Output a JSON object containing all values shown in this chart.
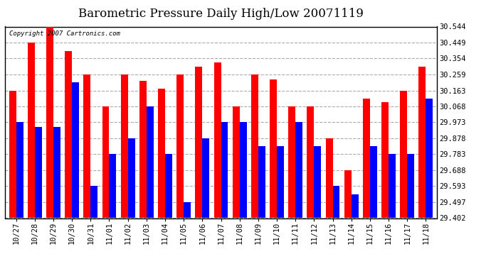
{
  "title": "Barometric Pressure Daily High/Low 20071119",
  "copyright": "Copyright 2007 Cartronics.com",
  "dates": [
    "10/27",
    "10/28",
    "10/29",
    "10/30",
    "10/31",
    "11/01",
    "11/02",
    "11/03",
    "11/04",
    "11/05",
    "11/06",
    "11/07",
    "11/08",
    "11/09",
    "11/10",
    "11/11",
    "11/12",
    "11/13",
    "11/14",
    "11/15",
    "11/16",
    "11/17",
    "11/18"
  ],
  "highs": [
    30.163,
    30.449,
    30.544,
    30.4,
    30.259,
    30.068,
    30.259,
    30.22,
    30.173,
    30.259,
    30.307,
    30.33,
    30.068,
    30.259,
    30.23,
    30.068,
    30.068,
    29.878,
    29.688,
    30.115,
    30.095,
    30.163,
    30.307
  ],
  "lows": [
    29.973,
    29.945,
    29.945,
    30.21,
    29.593,
    29.783,
    29.878,
    30.068,
    29.783,
    29.497,
    29.878,
    29.973,
    29.973,
    29.83,
    29.83,
    29.973,
    29.83,
    29.593,
    29.545,
    29.83,
    29.783,
    29.783,
    30.115
  ],
  "ymin": 29.402,
  "ymax": 30.544,
  "yticks": [
    30.544,
    30.449,
    30.354,
    30.259,
    30.163,
    30.068,
    29.973,
    29.878,
    29.783,
    29.688,
    29.593,
    29.497,
    29.402
  ],
  "high_color": "#FF0000",
  "low_color": "#0000FF",
  "bg_color": "#FFFFFF",
  "grid_color": "#AAAAAA",
  "bar_width": 0.38,
  "title_fontsize": 12,
  "tick_fontsize": 7.5,
  "copyright_fontsize": 6.5
}
